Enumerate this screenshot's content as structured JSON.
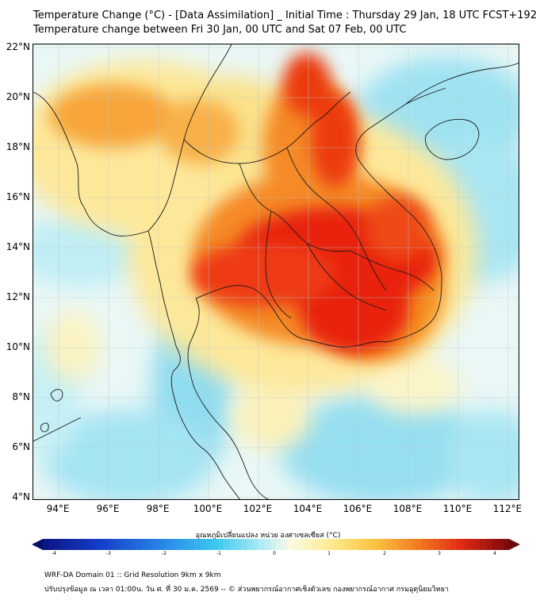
{
  "title_line1": "Temperature Change (°C) - [Data Assimilation] _ Initial Time : Thursday 29 Jan, 18 UTC FCST+192",
  "title_line2": "Temperature change between Fri 30 Jan, 00 UTC and Sat 07 Feb, 00 UTC",
  "y_ticks": [
    "22°N",
    "20°N",
    "18°N",
    "16°N",
    "14°N",
    "12°N",
    "10°N",
    "8°N",
    "6°N",
    "4°N"
  ],
  "x_ticks": [
    "94°E",
    "96°E",
    "98°E",
    "100°E",
    "102°E",
    "104°E",
    "106°E",
    "108°E",
    "110°E",
    "112°E"
  ],
  "colorbar": {
    "title": "อุณหภูมิเปลี่ยนแปลง หน่วย องศาเซลเซียส (°C)",
    "ticks": [
      "-4",
      "-3",
      "-2",
      "-1",
      "0",
      "1",
      "2",
      "3",
      "4"
    ],
    "range": [
      -4,
      4
    ]
  },
  "footer_line1": "WRF-DA Domain 01 :: Grid Resolution 9km x 9km",
  "footer_line2": "ปรับปรุงข้อมูล ณ เวลา 01:00น. วัน ศ. ที่ 30 ม.ค. 2569 -- © ส่วนพยากรณ์อากาศเชิงตัวเลข กองพยากรณ์อากาศ กรมอุตุนิยมวิทยา",
  "map": {
    "lon_range": [
      93,
      112.5
    ],
    "lat_range": [
      4,
      22.1
    ]
  },
  "colors": {
    "max_warm": "#e8200a",
    "warm": "#f59020",
    "mild_warm": "#fde88a",
    "neutral": "#f5f7f0",
    "cool": "#b8ecf6",
    "cold": "#7fd8ef"
  }
}
